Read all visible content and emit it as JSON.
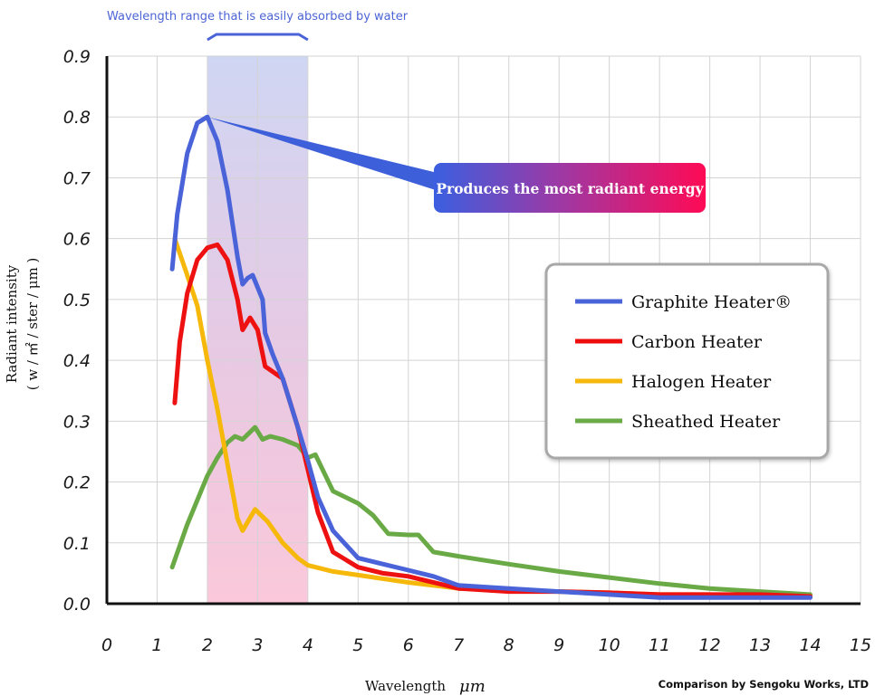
{
  "chart_data": {
    "type": "line",
    "xlabel": "Wavelength",
    "xunit": "μm",
    "ylabel": "Radiant intensity",
    "yunit": "( w / ㎡ / ster / μm )",
    "xlim": [
      0,
      15
    ],
    "ylim": [
      0,
      0.9
    ],
    "x_ticks": [
      "0",
      "1",
      "2",
      "3",
      "4",
      "5",
      "6",
      "7",
      "8",
      "9",
      "10",
      "11",
      "12",
      "13",
      "14",
      "15"
    ],
    "y_ticks": [
      "0.0",
      "0.1",
      "0.2",
      "0.3",
      "0.4",
      "0.5",
      "0.6",
      "0.7",
      "0.8",
      "0.9"
    ],
    "grid": true,
    "band": {
      "x_start": 2.0,
      "x_end": 4.0,
      "label": "Wavelength range that is easily absorbed by water"
    },
    "callout": {
      "text": "Produces the most radiant energy",
      "points_to": [
        2.0,
        0.8
      ]
    },
    "credit": "Comparison by Sengoku Works, LTD",
    "legend_position": "right",
    "series": [
      {
        "name": "Graphite Heater®",
        "color": "#4a63d8",
        "points": [
          [
            1.3,
            0.55
          ],
          [
            1.4,
            0.64
          ],
          [
            1.6,
            0.74
          ],
          [
            1.8,
            0.79
          ],
          [
            2.0,
            0.8
          ],
          [
            2.2,
            0.76
          ],
          [
            2.4,
            0.68
          ],
          [
            2.6,
            0.57
          ],
          [
            2.7,
            0.525
          ],
          [
            2.8,
            0.535
          ],
          [
            2.9,
            0.54
          ],
          [
            3.1,
            0.5
          ],
          [
            3.15,
            0.445
          ],
          [
            3.3,
            0.41
          ],
          [
            3.5,
            0.37
          ],
          [
            3.8,
            0.29
          ],
          [
            4.0,
            0.235
          ],
          [
            4.2,
            0.175
          ],
          [
            4.5,
            0.12
          ],
          [
            5.0,
            0.075
          ],
          [
            5.5,
            0.065
          ],
          [
            6.0,
            0.055
          ],
          [
            6.5,
            0.045
          ],
          [
            7.0,
            0.03
          ],
          [
            8.0,
            0.025
          ],
          [
            9.0,
            0.02
          ],
          [
            10.0,
            0.015
          ],
          [
            11.0,
            0.01
          ],
          [
            12.0,
            0.01
          ],
          [
            13.0,
            0.01
          ],
          [
            14.0,
            0.01
          ]
        ]
      },
      {
        "name": "Carbon Heater",
        "color": "#ee1111",
        "points": [
          [
            1.35,
            0.33
          ],
          [
            1.45,
            0.43
          ],
          [
            1.6,
            0.51
          ],
          [
            1.8,
            0.565
          ],
          [
            2.0,
            0.585
          ],
          [
            2.2,
            0.59
          ],
          [
            2.4,
            0.565
          ],
          [
            2.6,
            0.5
          ],
          [
            2.7,
            0.45
          ],
          [
            2.85,
            0.47
          ],
          [
            3.0,
            0.45
          ],
          [
            3.15,
            0.39
          ],
          [
            3.5,
            0.37
          ],
          [
            3.8,
            0.29
          ],
          [
            4.0,
            0.22
          ],
          [
            4.2,
            0.15
          ],
          [
            4.5,
            0.085
          ],
          [
            5.0,
            0.06
          ],
          [
            5.5,
            0.05
          ],
          [
            6.0,
            0.045
          ],
          [
            7.0,
            0.025
          ],
          [
            8.0,
            0.02
          ],
          [
            9.0,
            0.02
          ],
          [
            10.0,
            0.018
          ],
          [
            11.0,
            0.015
          ],
          [
            12.0,
            0.015
          ],
          [
            13.0,
            0.015
          ],
          [
            14.0,
            0.012
          ]
        ]
      },
      {
        "name": "Halogen Heater",
        "color": "#f6b80a",
        "points": [
          [
            1.35,
            0.6
          ],
          [
            1.6,
            0.54
          ],
          [
            1.8,
            0.49
          ],
          [
            2.0,
            0.4
          ],
          [
            2.2,
            0.32
          ],
          [
            2.4,
            0.23
          ],
          [
            2.6,
            0.14
          ],
          [
            2.7,
            0.12
          ],
          [
            2.95,
            0.155
          ],
          [
            3.2,
            0.135
          ],
          [
            3.5,
            0.1
          ],
          [
            3.8,
            0.075
          ],
          [
            4.0,
            0.063
          ],
          [
            4.5,
            0.053
          ],
          [
            5.0,
            0.047
          ],
          [
            6.0,
            0.035
          ],
          [
            7.0,
            0.025
          ],
          [
            8.0,
            0.022
          ],
          [
            9.0,
            0.02
          ],
          [
            10.0,
            0.018
          ],
          [
            11.0,
            0.015
          ],
          [
            12.0,
            0.015
          ],
          [
            13.0,
            0.012
          ],
          [
            14.0,
            0.012
          ]
        ]
      },
      {
        "name": "Sheathed Heater",
        "color": "#6aaa46",
        "points": [
          [
            1.3,
            0.06
          ],
          [
            1.6,
            0.13
          ],
          [
            1.8,
            0.17
          ],
          [
            2.0,
            0.21
          ],
          [
            2.2,
            0.24
          ],
          [
            2.4,
            0.265
          ],
          [
            2.55,
            0.275
          ],
          [
            2.7,
            0.27
          ],
          [
            2.95,
            0.29
          ],
          [
            3.1,
            0.27
          ],
          [
            3.25,
            0.275
          ],
          [
            3.5,
            0.27
          ],
          [
            3.8,
            0.26
          ],
          [
            4.0,
            0.24
          ],
          [
            4.15,
            0.245
          ],
          [
            4.5,
            0.185
          ],
          [
            5.0,
            0.165
          ],
          [
            5.3,
            0.145
          ],
          [
            5.6,
            0.115
          ],
          [
            6.0,
            0.113
          ],
          [
            6.2,
            0.113
          ],
          [
            6.5,
            0.085
          ],
          [
            7.0,
            0.078
          ],
          [
            8.0,
            0.065
          ],
          [
            9.0,
            0.053
          ],
          [
            10.0,
            0.043
          ],
          [
            11.0,
            0.033
          ],
          [
            12.0,
            0.025
          ],
          [
            13.0,
            0.02
          ],
          [
            14.0,
            0.015
          ]
        ]
      }
    ]
  }
}
